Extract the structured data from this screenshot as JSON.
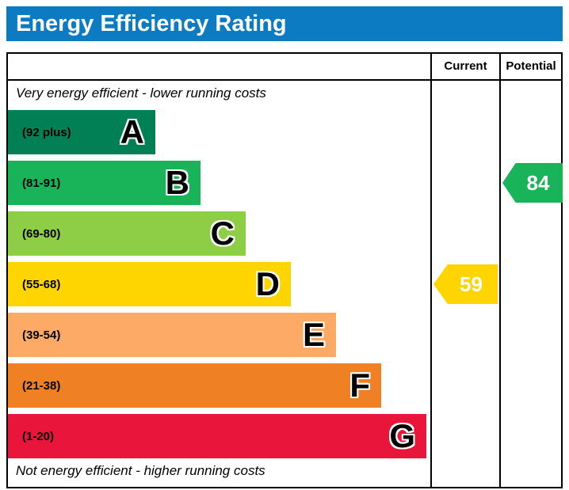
{
  "title": "Energy Efficiency Rating",
  "columns": {
    "current": "Current",
    "potential": "Potential"
  },
  "notes": {
    "top": "Very energy efficient - lower running costs",
    "bottom": "Not energy efficient - higher running costs"
  },
  "bands": [
    {
      "letter": "A",
      "range_label": "(92 plus)",
      "color": "#008054"
    },
    {
      "letter": "B",
      "range_label": "(81-91)",
      "color": "#19b459"
    },
    {
      "letter": "C",
      "range_label": "(69-80)",
      "color": "#8dce46"
    },
    {
      "letter": "D",
      "range_label": "(55-68)",
      "color": "#ffd500"
    },
    {
      "letter": "E",
      "range_label": "(39-54)",
      "color": "#fcaa65"
    },
    {
      "letter": "F",
      "range_label": "(21-38)",
      "color": "#ef8023"
    },
    {
      "letter": "G",
      "range_label": "(1-20)",
      "color": "#e9153b"
    }
  ],
  "current": {
    "value": "59",
    "color": "#ffd500",
    "band_index": 3
  },
  "potential": {
    "value": "84",
    "color": "#19b459",
    "band_index": 1
  },
  "colors": {
    "title_bar": "#0d7bc1",
    "border": "#000000"
  },
  "chart_data": {
    "type": "bar",
    "title": "Energy Efficiency Rating",
    "categories": [
      "A (92 plus)",
      "B (81-91)",
      "C (69-80)",
      "D (55-68)",
      "E (39-54)",
      "F (21-38)",
      "G (1-20)"
    ],
    "band_colors": [
      "#008054",
      "#19b459",
      "#8dce46",
      "#ffd500",
      "#fcaa65",
      "#ef8023",
      "#e9153b"
    ],
    "current_rating": 59,
    "current_band": "D",
    "potential_rating": 84,
    "potential_band": "B",
    "column_headers": [
      "Current",
      "Potential"
    ],
    "annotations": [
      "Very energy efficient - lower running costs",
      "Not energy efficient - higher running costs"
    ]
  }
}
